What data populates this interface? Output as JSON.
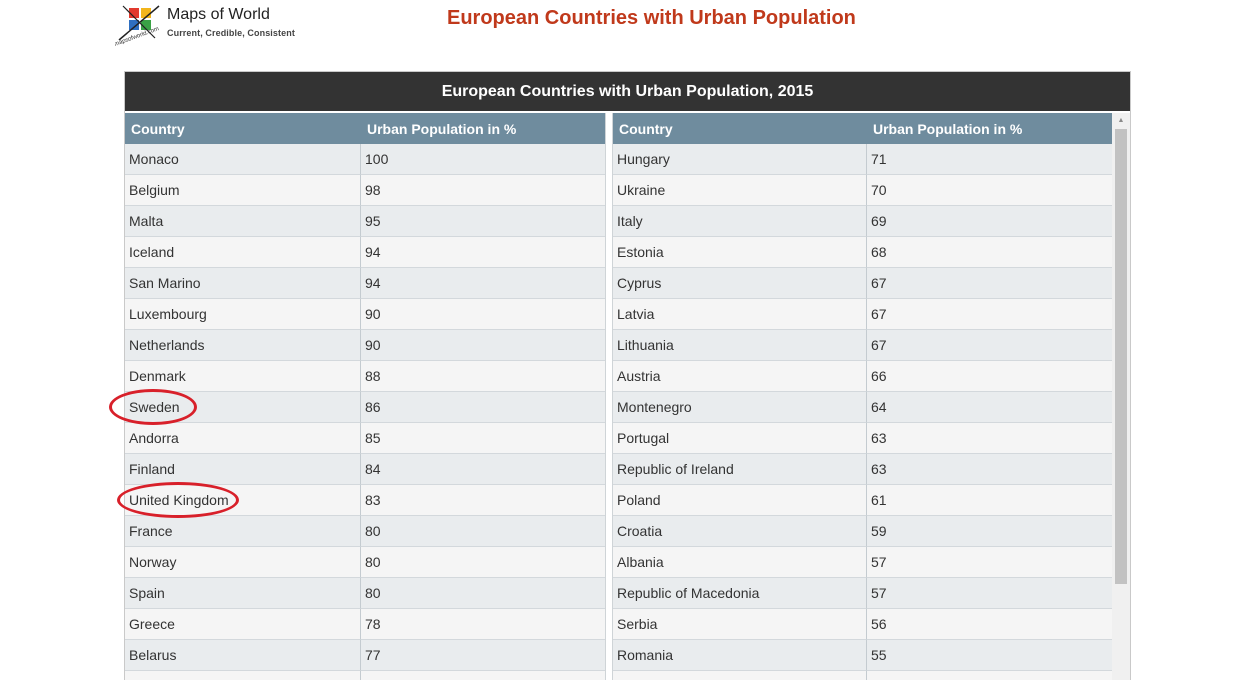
{
  "logo": {
    "brand": "Maps of World",
    "tagline": "Current, Credible, Consistent",
    "side_text": "mapsofworld.com"
  },
  "page_title": "European Countries with Urban Population",
  "table": {
    "caption": "European Countries with Urban Population, 2015",
    "headers": {
      "country": "Country",
      "urban": "Urban Population in %"
    },
    "left_rows": [
      {
        "country": "Monaco",
        "urban": "100"
      },
      {
        "country": "Belgium",
        "urban": "98"
      },
      {
        "country": "Malta",
        "urban": "95"
      },
      {
        "country": "Iceland",
        "urban": "94"
      },
      {
        "country": "San Marino",
        "urban": "94"
      },
      {
        "country": "Luxembourg",
        "urban": "90"
      },
      {
        "country": "Netherlands",
        "urban": "90"
      },
      {
        "country": "Denmark",
        "urban": "88"
      },
      {
        "country": "Sweden",
        "urban": "86"
      },
      {
        "country": "Andorra",
        "urban": "85"
      },
      {
        "country": "Finland",
        "urban": "84"
      },
      {
        "country": "United Kingdom",
        "urban": "83"
      },
      {
        "country": "France",
        "urban": "80"
      },
      {
        "country": "Norway",
        "urban": "80"
      },
      {
        "country": "Spain",
        "urban": "80"
      },
      {
        "country": "Greece",
        "urban": "78"
      },
      {
        "country": "Belarus",
        "urban": "77"
      },
      {
        "country": "",
        "urban": ""
      }
    ],
    "right_rows": [
      {
        "country": "Hungary",
        "urban": "71"
      },
      {
        "country": "Ukraine",
        "urban": "70"
      },
      {
        "country": "Italy",
        "urban": "69"
      },
      {
        "country": "Estonia",
        "urban": "68"
      },
      {
        "country": "Cyprus",
        "urban": "67"
      },
      {
        "country": "Latvia",
        "urban": "67"
      },
      {
        "country": "Lithuania",
        "urban": "67"
      },
      {
        "country": "Austria",
        "urban": "66"
      },
      {
        "country": "Montenegro",
        "urban": "64"
      },
      {
        "country": "Portugal",
        "urban": "63"
      },
      {
        "country": "Republic of Ireland",
        "urban": "63"
      },
      {
        "country": "Poland",
        "urban": "61"
      },
      {
        "country": "Croatia",
        "urban": "59"
      },
      {
        "country": "Albania",
        "urban": "57"
      },
      {
        "country": "Republic of Macedonia",
        "urban": "57"
      },
      {
        "country": "Serbia",
        "urban": "56"
      },
      {
        "country": "Romania",
        "urban": "55"
      },
      {
        "country": "",
        "urban": ""
      }
    ]
  },
  "colors": {
    "title": "#c0391b",
    "caption_bg": "#333333",
    "header_bg": "#6f8c9e",
    "highlight": "#d8202a"
  }
}
